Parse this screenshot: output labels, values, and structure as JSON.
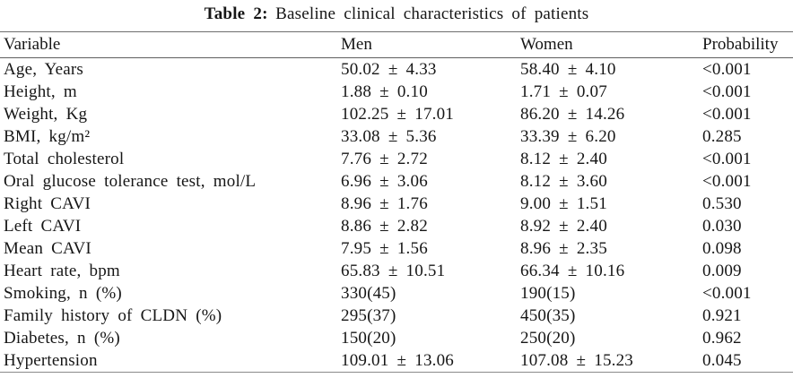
{
  "caption": {
    "label": "Table 2:",
    "text": "Baseline clinical characteristics of patients"
  },
  "chart_data": {
    "type": "table",
    "title": "Table 2: Baseline clinical characteristics of patients",
    "columns": [
      "Variable",
      "Men",
      "Women",
      "Probability"
    ],
    "rows": [
      [
        "Age, Years",
        "50.02 ± 4.33",
        "58.40 ± 4.10",
        "<0.001"
      ],
      [
        "Height, m",
        "1.88 ± 0.10",
        "1.71 ± 0.07",
        "<0.001"
      ],
      [
        "Weight, Kg",
        "102.25 ± 17.01",
        "86.20 ± 14.26",
        "<0.001"
      ],
      [
        "BMI, kg/m²",
        "33.08 ± 5.36",
        "33.39 ± 6.20",
        "0.285"
      ],
      [
        "Total cholesterol",
        "7.76 ± 2.72",
        "8.12 ± 2.40",
        "<0.001"
      ],
      [
        "Oral glucose tolerance test, mol/L",
        "6.96 ± 3.06",
        "8.12 ± 3.60",
        "<0.001"
      ],
      [
        "Right CAVI",
        "8.96 ± 1.76",
        "9.00 ± 1.51",
        "0.530"
      ],
      [
        "Left CAVI",
        "8.86 ± 2.82",
        "8.92 ± 2.40",
        "0.030"
      ],
      [
        "Mean CAVI",
        "7.95 ± 1.56",
        "8.96 ± 2.35",
        "0.098"
      ],
      [
        "Heart rate, bpm",
        "65.83 ± 10.51",
        "66.34 ± 10.16",
        "0.009"
      ],
      [
        "Smoking, n (%)",
        "330(45)",
        "190(15)",
        "<0.001"
      ],
      [
        "Family history of CLDN (%)",
        "295(37)",
        "450(35)",
        "0.921"
      ],
      [
        "Diabetes, n (%)",
        "150(20)",
        "250(20)",
        "0.962"
      ],
      [
        "Hypertension",
        "109.01 ± 13.06",
        "107.08 ± 15.23",
        "0.045"
      ]
    ]
  },
  "colors": {
    "text": "#161616",
    "rule": "#6e6e6e",
    "background": "#ffffff"
  }
}
